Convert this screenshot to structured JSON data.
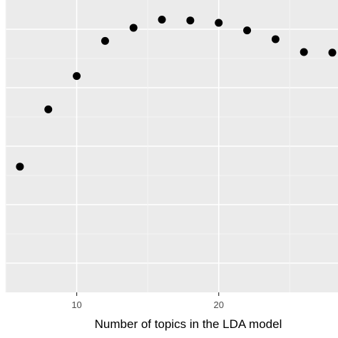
{
  "chart_data": {
    "type": "scatter",
    "title": "",
    "xlabel": "Number of topics in the LDA model",
    "ylabel": "",
    "xlim": [
      5.0,
      28.4
    ],
    "ylim": [
      0,
      1
    ],
    "x_ticks": [
      10,
      20
    ],
    "grid": true,
    "series": [
      {
        "x": [
          6,
          8,
          10,
          12,
          14,
          16,
          18,
          20,
          22,
          24,
          26,
          28
        ],
        "y": [
          0.43,
          0.626,
          0.74,
          0.86,
          0.905,
          0.933,
          0.93,
          0.922,
          0.896,
          0.866,
          0.822,
          0.82
        ]
      }
    ]
  },
  "colors": {
    "panel": "#ebebeb",
    "grid_major": "#ffffff",
    "grid_minor": "#f5f5f5",
    "point": "#000000",
    "tick": "#333333"
  }
}
